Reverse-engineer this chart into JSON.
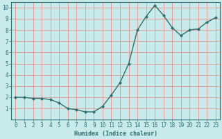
{
  "x": [
    0,
    1,
    2,
    3,
    4,
    5,
    6,
    7,
    8,
    9,
    10,
    11,
    12,
    13,
    14,
    15,
    16,
    17,
    18,
    19,
    20,
    21,
    22,
    23
  ],
  "y": [
    2.0,
    2.0,
    1.9,
    1.9,
    1.8,
    1.5,
    1.0,
    0.9,
    0.7,
    0.7,
    1.2,
    2.2,
    3.3,
    5.0,
    8.0,
    9.2,
    10.2,
    9.3,
    8.2,
    7.5,
    8.0,
    8.1,
    8.7,
    9.1
  ],
  "line_color": "#2d6e6e",
  "marker": "D",
  "marker_size": 2,
  "bg_color": "#c8eaea",
  "grid_color": "#f08080",
  "xlabel": "Humidex (Indice chaleur)",
  "ylim": [
    0,
    10.5
  ],
  "xlim": [
    -0.5,
    23.5
  ],
  "yticks": [
    1,
    2,
    3,
    4,
    5,
    6,
    7,
    8,
    9,
    10
  ],
  "xticks": [
    0,
    1,
    2,
    3,
    4,
    5,
    6,
    7,
    8,
    9,
    10,
    11,
    12,
    13,
    14,
    15,
    16,
    17,
    18,
    19,
    20,
    21,
    22,
    23
  ],
  "font_color": "#2d6e6e",
  "axis_color": "#2d6e6e",
  "tick_fontsize": 5.5,
  "xlabel_fontsize": 6,
  "linewidth": 1.0
}
